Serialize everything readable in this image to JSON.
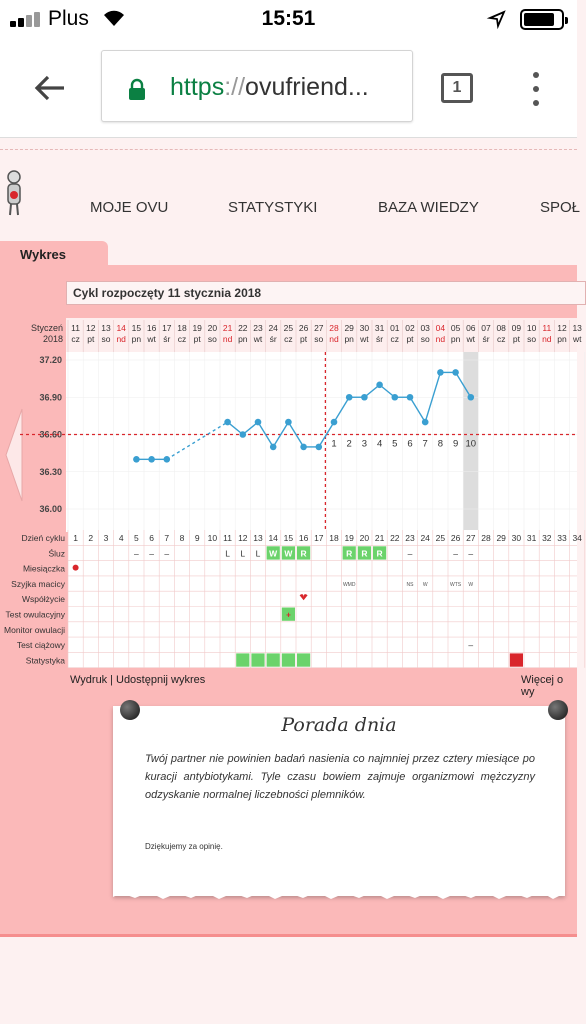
{
  "status": {
    "carrier": "Plus",
    "time": "15:51"
  },
  "browser": {
    "url_protocol": "https",
    "url_sep": "://",
    "url_host": "ovufriend...",
    "tab_count": "1"
  },
  "nav": [
    "MOJE OVU",
    "STATYSTYKI",
    "BAZA WIEDZY",
    "SPOŁ"
  ],
  "tab_label": "Wykres",
  "cycle_title": "Cykl rozpoczęty 11 stycznia 2018",
  "date_header": {
    "month_label": "Styczeń",
    "year_label": "2018",
    "days": [
      {
        "d": "11",
        "w": "cz"
      },
      {
        "d": "12",
        "w": "pt"
      },
      {
        "d": "13",
        "w": "so"
      },
      {
        "d": "14",
        "w": "nd",
        "red": true
      },
      {
        "d": "15",
        "w": "pn"
      },
      {
        "d": "16",
        "w": "wt"
      },
      {
        "d": "17",
        "w": "śr"
      },
      {
        "d": "18",
        "w": "cz"
      },
      {
        "d": "19",
        "w": "pt"
      },
      {
        "d": "20",
        "w": "so"
      },
      {
        "d": "21",
        "w": "nd",
        "red": true
      },
      {
        "d": "22",
        "w": "pn"
      },
      {
        "d": "23",
        "w": "wt"
      },
      {
        "d": "24",
        "w": "śr"
      },
      {
        "d": "25",
        "w": "cz"
      },
      {
        "d": "26",
        "w": "pt"
      },
      {
        "d": "27",
        "w": "so"
      },
      {
        "d": "28",
        "w": "nd",
        "red": true
      },
      {
        "d": "29",
        "w": "pn"
      },
      {
        "d": "30",
        "w": "wt"
      },
      {
        "d": "31",
        "w": "śr"
      },
      {
        "d": "01",
        "w": "cz"
      },
      {
        "d": "02",
        "w": "pt"
      },
      {
        "d": "03",
        "w": "so"
      },
      {
        "d": "04",
        "w": "nd",
        "red": true
      },
      {
        "d": "05",
        "w": "pn"
      },
      {
        "d": "06",
        "w": "wt"
      },
      {
        "d": "07",
        "w": "śr"
      },
      {
        "d": "08",
        "w": "cz"
      },
      {
        "d": "09",
        "w": "pt"
      },
      {
        "d": "10",
        "w": "so"
      },
      {
        "d": "11",
        "w": "nd",
        "red": true
      },
      {
        "d": "12",
        "w": "pn"
      },
      {
        "d": "13",
        "w": "wt"
      }
    ]
  },
  "chart_data": {
    "type": "line",
    "y_ticks": [
      "37.20",
      "36.90",
      "36.60",
      "36.30",
      "36.00"
    ],
    "ylim": [
      36.0,
      37.2
    ],
    "coverline": 36.6,
    "ovulation_day": 17,
    "highlight_day": 27,
    "series": [
      {
        "points": [
          {
            "day": 5,
            "temp": 36.4
          },
          {
            "day": 6,
            "temp": 36.4
          },
          {
            "day": 7,
            "temp": 36.4
          },
          {
            "day": 11,
            "temp": 36.7
          },
          {
            "day": 12,
            "temp": 36.6
          },
          {
            "day": 13,
            "temp": 36.7
          },
          {
            "day": 14,
            "temp": 36.5
          },
          {
            "day": 15,
            "temp": 36.7
          },
          {
            "day": 16,
            "temp": 36.5
          },
          {
            "day": 17,
            "temp": 36.5
          },
          {
            "day": 18,
            "temp": 36.7
          },
          {
            "day": 19,
            "temp": 36.9
          },
          {
            "day": 20,
            "temp": 36.9
          },
          {
            "day": 21,
            "temp": 37.0
          },
          {
            "day": 22,
            "temp": 36.9
          },
          {
            "day": 23,
            "temp": 36.9
          },
          {
            "day": 24,
            "temp": 36.7
          },
          {
            "day": 25,
            "temp": 37.1
          },
          {
            "day": 26,
            "temp": 37.1
          },
          {
            "day": 27,
            "temp": 36.9
          }
        ]
      }
    ],
    "luteal_labels": [
      {
        "day": 18,
        "label": "1"
      },
      {
        "day": 19,
        "label": "2"
      },
      {
        "day": 20,
        "label": "3"
      },
      {
        "day": 21,
        "label": "4"
      },
      {
        "day": 22,
        "label": "5"
      },
      {
        "day": 23,
        "label": "6"
      },
      {
        "day": 24,
        "label": "7"
      },
      {
        "day": 25,
        "label": "8"
      },
      {
        "day": 26,
        "label": "9"
      },
      {
        "day": 27,
        "label": "10"
      }
    ]
  },
  "grid": {
    "row_labels": [
      "Dzień cyklu",
      "Śluz",
      "Miesiączka",
      "Szyjka macicy",
      "Współżycie",
      "Test owulacyjny",
      "Monitor owulacji",
      "Test ciążowy",
      "Statystyka"
    ],
    "cycle_days": [
      "1",
      "2",
      "3",
      "4",
      "5",
      "6",
      "7",
      "8",
      "9",
      "10",
      "11",
      "12",
      "13",
      "14",
      "15",
      "16",
      "17",
      "18",
      "19",
      "20",
      "21",
      "22",
      "23",
      "24",
      "25",
      "26",
      "27",
      "28",
      "29",
      "30",
      "31",
      "32",
      "33",
      "34"
    ],
    "sluz": [
      {
        "day": 5,
        "text": "–"
      },
      {
        "day": 6,
        "text": "–"
      },
      {
        "day": 7,
        "text": "–"
      },
      {
        "day": 11,
        "text": "L"
      },
      {
        "day": 12,
        "text": "L"
      },
      {
        "day": 13,
        "text": "L"
      },
      {
        "day": 14,
        "text": "W",
        "green": true
      },
      {
        "day": 15,
        "text": "W",
        "green": true
      },
      {
        "day": 16,
        "text": "R",
        "green": true
      },
      {
        "day": 19,
        "text": "R",
        "green": true
      },
      {
        "day": 20,
        "text": "R",
        "green": true
      },
      {
        "day": 21,
        "text": "R",
        "green": true
      },
      {
        "day": 23,
        "text": "–"
      },
      {
        "day": 26,
        "text": "–"
      },
      {
        "day": 27,
        "text": "–"
      }
    ],
    "szyjka": [
      {
        "day": 19,
        "text": "WMD"
      },
      {
        "day": 23,
        "text": "NS"
      },
      {
        "day": 24,
        "text": "W"
      },
      {
        "day": 26,
        "text": "WTS"
      },
      {
        "day": 27,
        "text": "W"
      }
    ],
    "test_ciazowy": [
      {
        "day": 27,
        "text": "–"
      }
    ]
  },
  "links": {
    "print": "Wydruk",
    "sep": "|",
    "share": "Udostępnij wykres",
    "more": "Więcej o wy"
  },
  "tip": {
    "title": "Porada dnia",
    "text": "Twój partner nie powinien badań nasienia co najmniej przez cztery miesiące po kuracji antybiotykami. Tyle czasu bowiem zajmuje organizmowi mężczyzny odzyskanie normalnej liczebności plemników.",
    "thanks": "Dziękujemy za opinię."
  },
  "colors": {
    "accent_red": "#d9262c",
    "line_blue": "#3a9fd1",
    "panel_pink": "#fbb9b9",
    "green": "#6bd36b"
  }
}
